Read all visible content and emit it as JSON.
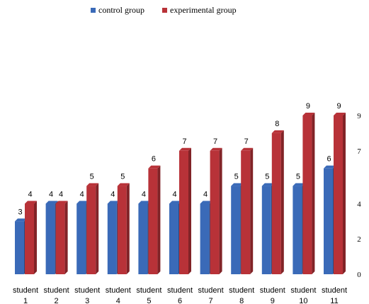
{
  "chart_data": {
    "type": "bar",
    "categories": [
      [
        "student",
        "1"
      ],
      [
        "student",
        "2"
      ],
      [
        "student",
        "3"
      ],
      [
        "student",
        "4"
      ],
      [
        "student",
        "5"
      ],
      [
        "student",
        "6"
      ],
      [
        "student",
        "7"
      ],
      [
        "student",
        "8"
      ],
      [
        "student",
        "9"
      ],
      [
        "student",
        "10"
      ],
      [
        "student",
        "11"
      ]
    ],
    "series": [
      {
        "name": "control group",
        "color": "#3a6ab8",
        "values": [
          3,
          4,
          4,
          4,
          4,
          4,
          4,
          5,
          5,
          5,
          6
        ]
      },
      {
        "name": "experimental  group",
        "color": "#b83238",
        "values": [
          4,
          4,
          5,
          5,
          6,
          7,
          7,
          7,
          8,
          9,
          9
        ]
      }
    ],
    "y_ticks": [
      "0",
      "2",
      "4",
      "7",
      "9"
    ],
    "ylim": [
      0,
      9
    ],
    "legend_position": "top",
    "grid": false,
    "bar_style": "3d"
  }
}
